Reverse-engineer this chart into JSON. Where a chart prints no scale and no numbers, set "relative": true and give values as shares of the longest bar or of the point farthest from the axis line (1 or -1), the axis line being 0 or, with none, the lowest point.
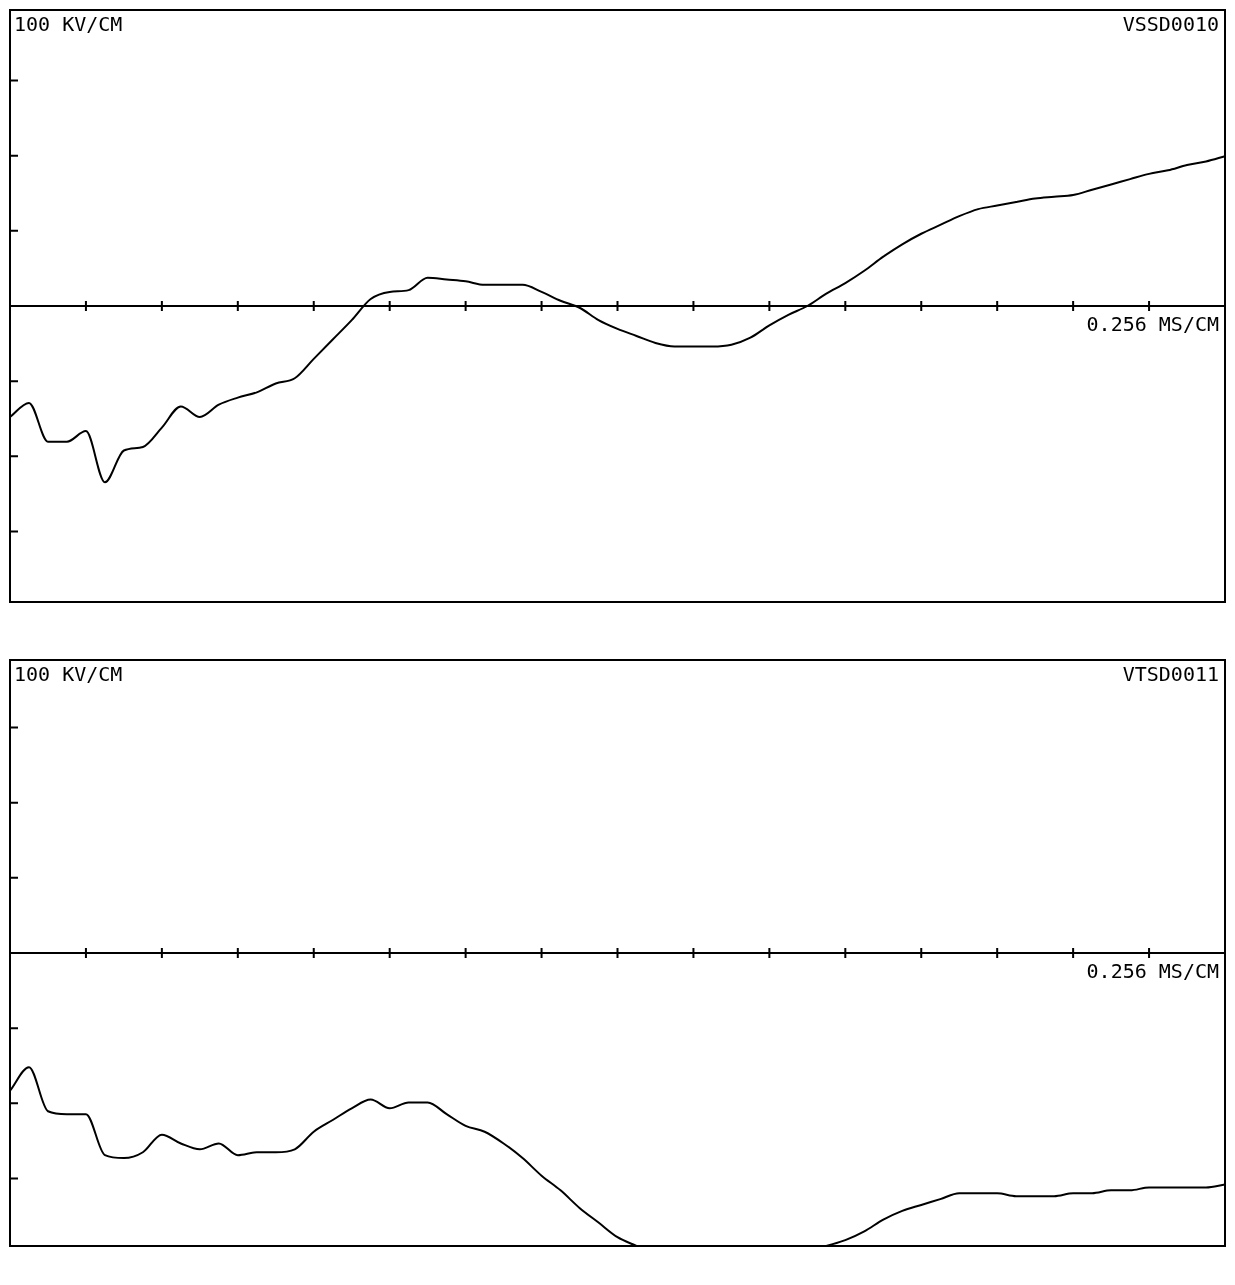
{
  "chart_data": [
    {
      "type": "line",
      "relative": true,
      "categories": [
        null,
        null,
        null,
        null,
        null,
        null,
        null,
        null,
        null,
        null,
        null,
        null,
        null,
        null,
        null,
        null,
        null,
        null,
        null,
        null,
        null,
        null,
        null,
        null,
        null,
        null,
        null,
        null,
        null,
        null,
        null,
        null,
        null,
        null,
        null,
        null,
        null,
        null,
        null,
        null,
        null,
        null,
        null,
        null,
        null,
        null,
        null,
        null,
        null,
        null,
        null,
        null,
        null,
        null,
        null,
        null,
        null,
        null,
        null,
        null,
        null,
        null,
        null,
        null,
        null
      ],
      "series": [
        {
          "color": "#000000",
          "values": [
            -0.63,
            -0.55,
            -0.77,
            -0.77,
            -0.71,
            -1,
            -0.82,
            -0.8,
            -0.69,
            -0.57,
            -0.63,
            -0.56,
            -0.52,
            -0.49,
            -0.44,
            -0.41,
            -0.3,
            -0.19,
            -0.08,
            0.04,
            0.08,
            0.09,
            0.16,
            0.15,
            0.14,
            0.12,
            0.12,
            0.12,
            0.08,
            0.03,
            -0.01,
            -0.08,
            -0.13,
            -0.17,
            -0.21,
            -0.23,
            -0.23,
            -0.23,
            -0.22,
            -0.18,
            -0.11,
            -0.05,
            0,
            0.07,
            0.13,
            0.2,
            0.28,
            0.35,
            0.41,
            0.46,
            0.51,
            0.55,
            0.57,
            0.59,
            0.61,
            0.62,
            0.63,
            0.66,
            0.69,
            0.72,
            0.75,
            0.77,
            0.8,
            0.82,
            0.85
          ]
        }
      ],
      "annotations": [
        "100 KV/CM",
        "VSSD0010",
        "0.256 MS/CM"
      ]
    },
    {
      "type": "line",
      "relative": true,
      "categories": [
        null,
        null,
        null,
        null,
        null,
        null,
        null,
        null,
        null,
        null,
        null,
        null,
        null,
        null,
        null,
        null,
        null,
        null,
        null,
        null,
        null,
        null,
        null,
        null,
        null,
        null,
        null,
        null,
        null,
        null,
        null,
        null,
        null,
        null,
        null,
        null,
        null,
        null,
        null,
        null,
        null,
        null,
        null,
        null,
        null,
        null,
        null,
        null,
        null,
        null,
        null,
        null,
        null,
        null,
        null,
        null,
        null,
        null,
        null,
        null,
        null,
        null,
        null,
        null,
        null
      ],
      "series": [
        {
          "color": "#000000",
          "values": [
            -0.47,
            -0.39,
            -0.54,
            -0.55,
            -0.55,
            -0.69,
            -0.7,
            -0.68,
            -0.62,
            -0.65,
            -0.67,
            -0.65,
            -0.69,
            -0.68,
            -0.68,
            -0.67,
            -0.61,
            -0.57,
            -0.53,
            -0.5,
            -0.53,
            -0.51,
            -0.51,
            -0.55,
            -0.59,
            -0.61,
            -0.65,
            -0.7,
            -0.76,
            -0.81,
            -0.87,
            -0.92,
            -0.97,
            -1,
            null,
            null,
            null,
            null,
            null,
            null,
            null,
            null,
            null,
            -1,
            -0.98,
            -0.95,
            -0.91,
            -0.88,
            -0.86,
            -0.84,
            -0.82,
            -0.82,
            -0.82,
            -0.83,
            -0.83,
            -0.83,
            -0.82,
            -0.82,
            -0.81,
            -0.81,
            -0.8,
            -0.8,
            -0.8,
            -0.8,
            -0.79
          ]
        }
      ],
      "annotations": [
        "100 KV/CM",
        "VTSD0011",
        "0.256 MS/CM"
      ]
    }
  ]
}
